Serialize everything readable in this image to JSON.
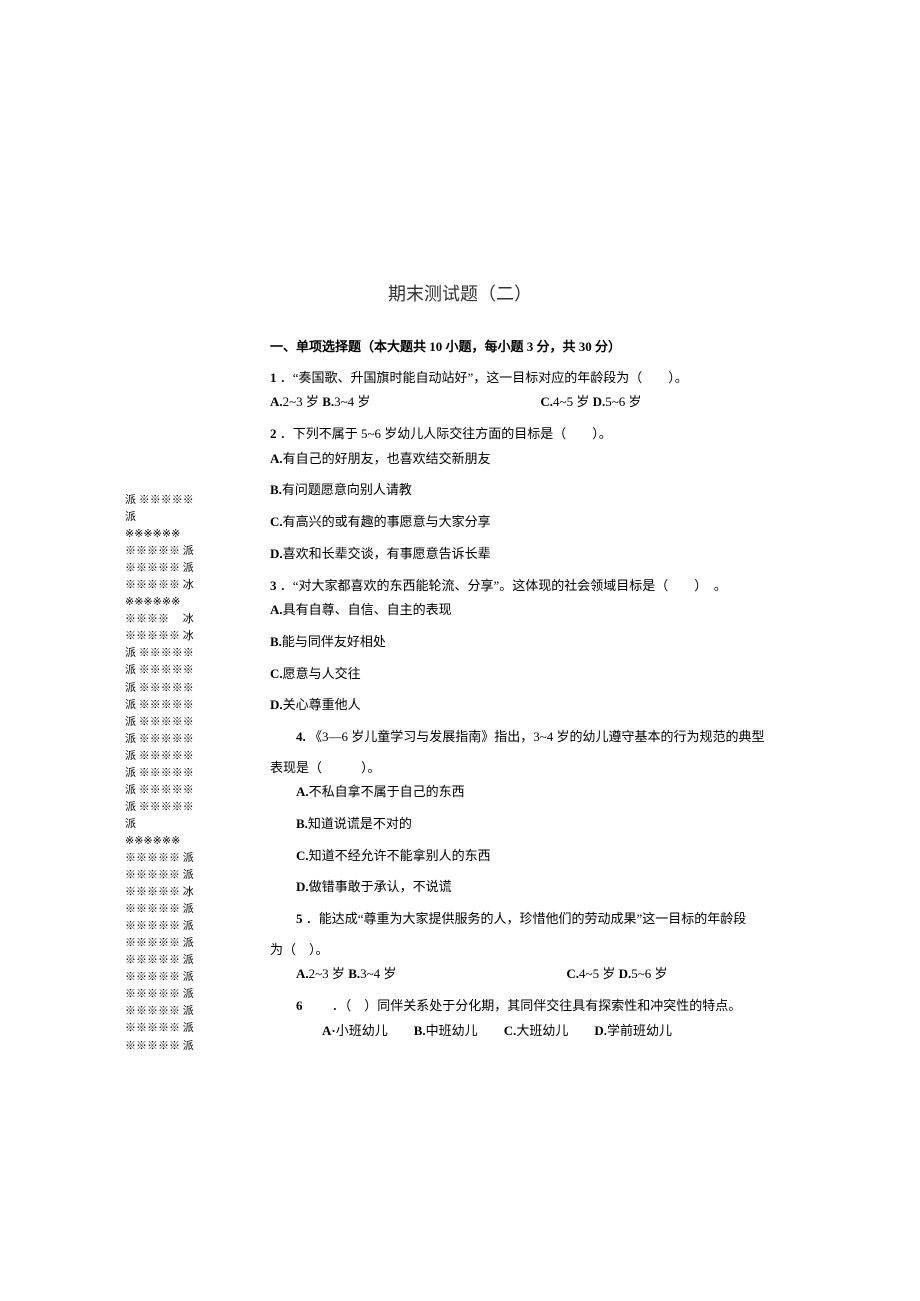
{
  "title": "期末测试题（二）",
  "section_heading": "一、单项选择题（本大题共 10 小题，每小题 3 分，共 30 分）",
  "questions": [
    {
      "num": "1",
      "text": "．“奏国歌、升国旗时能自动站好”，这一目标对应的年龄段为（　　）。",
      "option_lines": [
        {
          "parts": [
            {
              "label": "A.",
              "text": "2~3 岁 "
            },
            {
              "label": "B.",
              "text": "3~4 岁"
            }
          ],
          "spacer": 170,
          "parts2": [
            {
              "label": "C.",
              "text": "4~5 岁 "
            },
            {
              "label": "D.",
              "text": "5~6 岁"
            }
          ]
        }
      ]
    },
    {
      "num": "2",
      "text": "．下列不属于 5~6 岁幼儿人际交往方面的目标是（　　）。",
      "option_lines": [
        {
          "parts": [
            {
              "label": "A.",
              "text": "有自己的好朋友，也喜欢结交新朋友"
            }
          ]
        },
        {
          "parts": [
            {
              "label": "B.",
              "text": "有问题愿意向别人请教"
            }
          ]
        },
        {
          "parts": [
            {
              "label": "C.",
              "text": "有高兴的或有趣的事愿意与大家分享"
            }
          ]
        },
        {
          "parts": [
            {
              "label": "D.",
              "text": "喜欢和长辈交谈，有事愿意告诉长辈"
            }
          ]
        }
      ]
    },
    {
      "num": "3",
      "text": "．“对大家都喜欢的东西能轮流、分享”。这体现的社会领域目标是（　　）　。",
      "option_lines": [
        {
          "parts": [
            {
              "label": "A.",
              "text": "具有自尊、自信、自主的表现"
            }
          ]
        },
        {
          "parts": [
            {
              "label": "B.",
              "text": "能与同伴友好相处"
            }
          ]
        },
        {
          "parts": [
            {
              "label": "C.",
              "text": "愿意与人交往"
            }
          ]
        },
        {
          "parts": [
            {
              "label": "D.",
              "text": "关心尊重他人"
            }
          ]
        }
      ]
    },
    {
      "num": "4.",
      "text": "《3—6 岁儿童学习与发展指南》指出，3~4 岁的幼儿遵守基本的行为规范的典型",
      "cont": "表现是（　　　）。",
      "option_lines": [
        {
          "parts": [
            {
              "label": "A.",
              "text": "不私自拿不属于自己的东西"
            }
          ],
          "indent": true
        },
        {
          "parts": [
            {
              "label": "B.",
              "text": "知道说谎是不对的"
            }
          ],
          "indent": true
        },
        {
          "parts": [
            {
              "label": "C.",
              "text": "知道不经允许不能拿别人的东西"
            }
          ],
          "indent": true
        },
        {
          "parts": [
            {
              "label": "D.",
              "text": "做错事敢于承认，不说谎"
            }
          ],
          "indent": true
        }
      ],
      "indented": true
    },
    {
      "num": "5",
      "text": "．能达成“尊重为大家提供服务的人，珍惜他们的劳动成果”这一目标的年龄段",
      "cont": "为（　）。",
      "option_lines": [
        {
          "parts": [
            {
              "label": "A.",
              "text": "2~3 岁 "
            },
            {
              "label": "B.",
              "text": "3~4 岁"
            }
          ],
          "spacer": 170,
          "parts2": [
            {
              "label": "C.",
              "text": "4~5 岁 "
            },
            {
              "label": "D.",
              "text": "5~6 岁"
            }
          ],
          "indent": true
        }
      ],
      "indented": true
    },
    {
      "num": "6　　",
      "text": "．（　）同伴关系处于分化期，其同伴交往具有探索性和冲突性的特点。",
      "option_lines": [
        {
          "parts": [
            {
              "label": "A·",
              "text": "小班幼儿　　"
            },
            {
              "label": "B.",
              "text": "中班幼儿　　"
            },
            {
              "label": "C.",
              "text": "大班幼儿　　"
            },
            {
              "label": "D.",
              "text": "学前班幼儿"
            }
          ],
          "indent": true
        }
      ],
      "indented": true
    }
  ],
  "decorative_lines": [
    "派 ※※※※※",
    "派",
    "※※※※※※",
    "※※※※※ 派",
    "※※※※※ 派",
    "※※※※※ 冰",
    "※※※※※※",
    "※※※※　 冰",
    "※※※※※ 冰",
    "派 ※※※※※",
    "派 ※※※※※",
    "派 ※※※※※",
    "派 ※※※※※",
    "派 ※※※※※",
    "派 ※※※※※",
    "派 ※※※※※",
    "派 ※※※※※",
    "派 ※※※※※",
    "派 ※※※※※",
    "派",
    "※※※※※※",
    "※※※※※ 派",
    "※※※※※ 派",
    "※※※※※ 冰",
    "※※※※※ 派",
    "※※※※※ 派",
    "※※※※※ 派",
    "※※※※※ 派",
    "※※※※※ 派",
    "※※※※※ 派",
    "※※※※※ 派",
    "※※※※※ 派",
    "※※※※※ 派"
  ]
}
